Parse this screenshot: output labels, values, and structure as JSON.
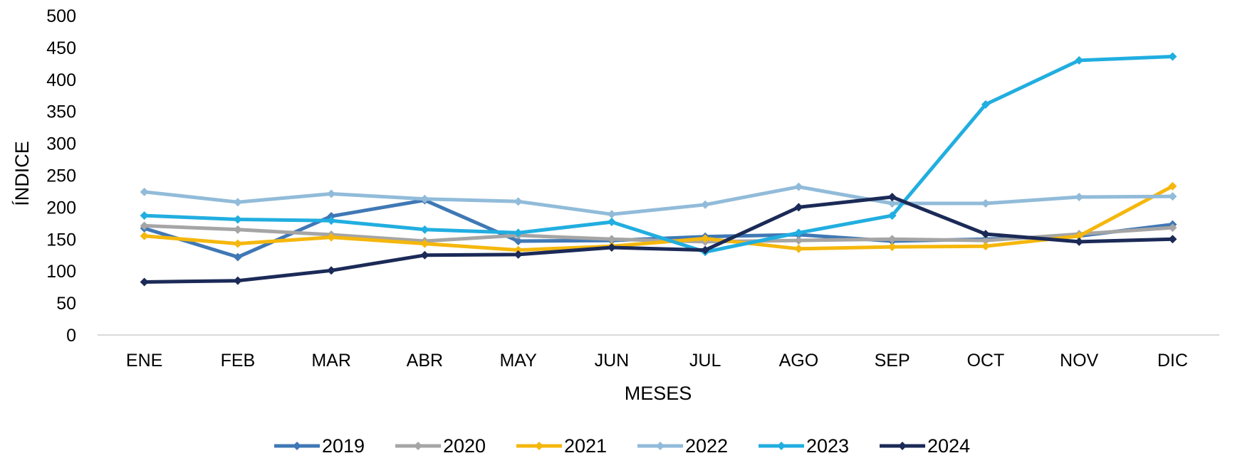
{
  "chart_data": {
    "type": "line",
    "xlabel": "MESES",
    "ylabel": "ÍNDICE",
    "ylim": [
      0,
      500
    ],
    "yticks": [
      "0",
      "50",
      "100",
      "150",
      "200",
      "250",
      "300",
      "350",
      "400",
      "450",
      "500"
    ],
    "categories": [
      "ENE",
      "FEB",
      "MAR",
      "ABR",
      "MAY",
      "JUN",
      "JUL",
      "AGO",
      "SEP",
      "OCT",
      "NOV",
      "DIC"
    ],
    "grid": false,
    "legend_position": "bottom",
    "series": [
      {
        "name": "2019",
        "color": "#3f78b5",
        "values": [
          167,
          122,
          186,
          211,
          147,
          148,
          154,
          157,
          147,
          150,
          155,
          173
        ]
      },
      {
        "name": "2020",
        "color": "#a5a5a5",
        "values": [
          171,
          165,
          157,
          147,
          156,
          150,
          146,
          148,
          150,
          148,
          158,
          168
        ]
      },
      {
        "name": "2021",
        "color": "#f5b70d",
        "values": [
          155,
          143,
          153,
          143,
          133,
          139,
          151,
          135,
          138,
          139,
          155,
          233
        ]
      },
      {
        "name": "2022",
        "color": "#91bbd9",
        "values": [
          224,
          208,
          221,
          213,
          209,
          189,
          204,
          232,
          206,
          206,
          216,
          217
        ]
      },
      {
        "name": "2023",
        "color": "#21aee0",
        "values": [
          187,
          181,
          179,
          165,
          160,
          177,
          130,
          160,
          187,
          361,
          430,
          436
        ]
      },
      {
        "name": "2024",
        "color": "#1b2a57",
        "values": [
          83,
          85,
          101,
          125,
          126,
          137,
          133,
          200,
          216,
          158,
          146,
          150
        ]
      }
    ]
  }
}
